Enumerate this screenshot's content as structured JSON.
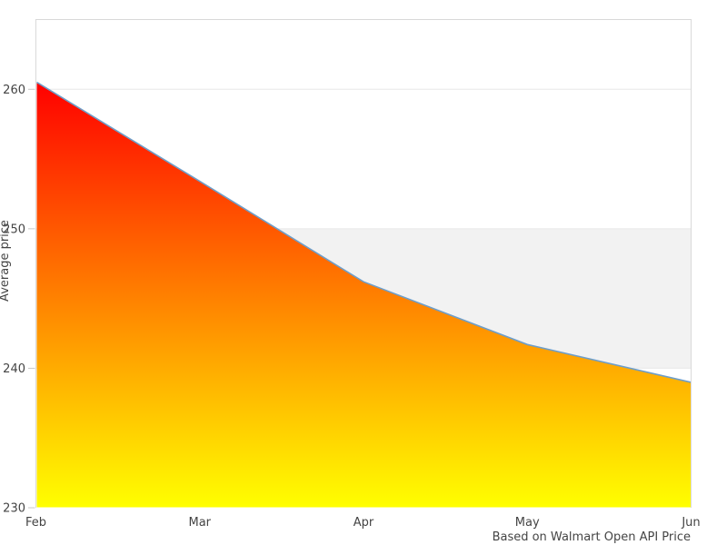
{
  "chart_data": {
    "type": "area",
    "x_categories": [
      "Feb",
      "Mar",
      "Apr",
      "May",
      "Jun"
    ],
    "values": [
      260.5,
      253.4,
      246.2,
      241.7,
      239.0
    ],
    "ylabel": "Average price",
    "caption": "Based on Walmart Open API Price",
    "ylim": [
      230,
      265
    ],
    "yticks": [
      230,
      240,
      250,
      260
    ],
    "plot_band": {
      "from": 240,
      "to": 250,
      "color": "#f2f2f2"
    },
    "grid": true,
    "legend": "none",
    "colors": {
      "area_gradient_top": "#ff0000",
      "area_gradient_bottom": "#ffff00",
      "line": "#6e9ec9",
      "gridline": "#e8e8e8",
      "border": "#d9d9d9",
      "tick_mark": "#c9c9c9",
      "text": "#444444",
      "background": "#ffffff"
    }
  }
}
